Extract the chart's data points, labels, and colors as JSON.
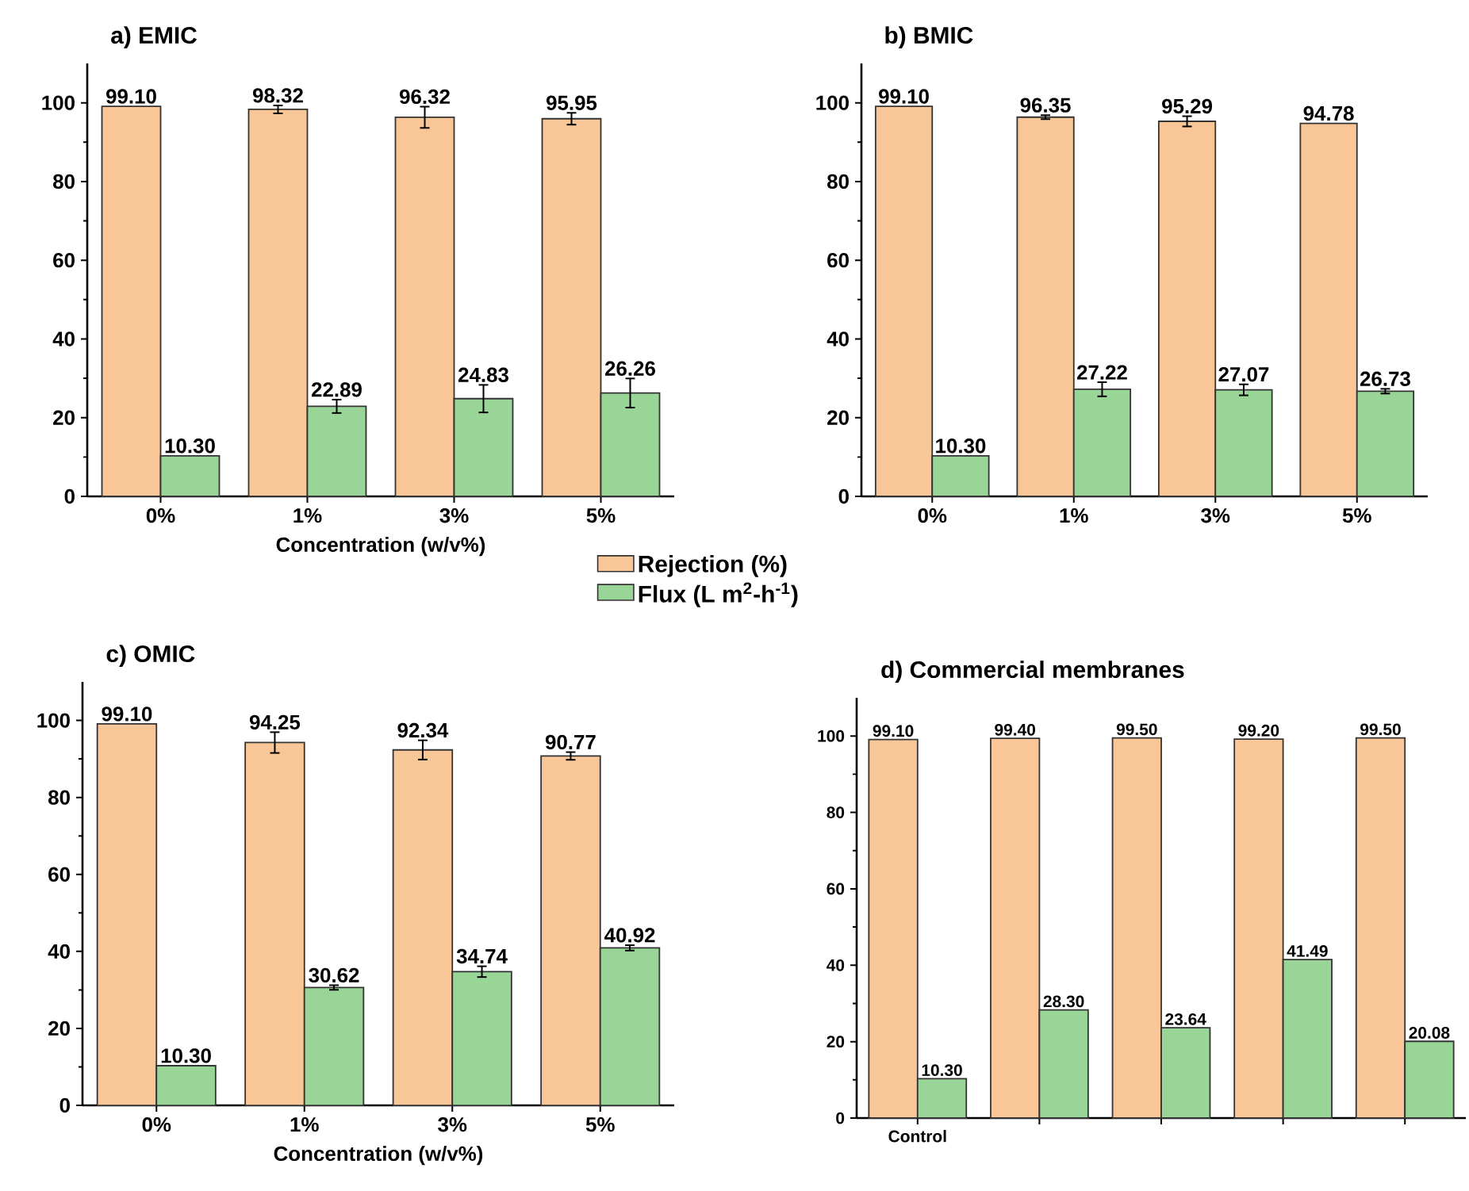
{
  "chart_data": [
    {
      "type": "bar",
      "title": "a) EMIC",
      "xlabel": "Concentration (w/v%)",
      "categories": [
        "0%",
        "1%",
        "3%",
        "5%"
      ],
      "ylim": [
        0,
        110
      ],
      "yticks": [
        0,
        20,
        40,
        60,
        80,
        100
      ],
      "legend": "bottom right",
      "series": [
        {
          "name": "Rejection (%)",
          "color": "#f9c797",
          "values": [
            99.1,
            98.32,
            96.32,
            95.95
          ],
          "errors": [
            null,
            1.0,
            2.7,
            1.5
          ],
          "value_labels": [
            "99.10",
            "98.32",
            "96.32",
            "95.95"
          ]
        },
        {
          "name": "Flux (L m$^{2}$-h$^{-1}$)",
          "color": "#98d596",
          "values": [
            10.3,
            22.89,
            24.83,
            26.26
          ],
          "errors": [
            null,
            1.7,
            3.5,
            3.7
          ],
          "value_labels": [
            "10.30",
            "22.89",
            "24.83",
            "26.26"
          ]
        }
      ]
    },
    {
      "type": "bar",
      "title": "b) BMIC",
      "categories": [
        "0%",
        "1%",
        "3%",
        "5%"
      ],
      "ylim": [
        0,
        110
      ],
      "yticks": [
        0,
        20,
        40,
        60,
        80,
        100
      ],
      "series": [
        {
          "color": "#f9c797",
          "values": [
            99.1,
            96.35,
            95.29,
            94.78
          ],
          "errors": [
            null,
            0.5,
            1.3,
            null
          ],
          "value_labels": [
            "99.10",
            "96.35",
            "95.29",
            "94.78"
          ]
        },
        {
          "color": "#98d596",
          "values": [
            10.3,
            27.22,
            27.07,
            26.73
          ],
          "errors": [
            null,
            1.8,
            1.4,
            0.6
          ],
          "value_labels": [
            "10.30",
            "27.22",
            "27.07",
            "26.73"
          ]
        }
      ]
    },
    {
      "type": "bar",
      "title": "c) OMIC",
      "xlabel": "Concentration (w/v%)",
      "categories": [
        "0%",
        "1%",
        "3%",
        "5%"
      ],
      "ylim": [
        0,
        110
      ],
      "yticks": [
        0,
        20,
        40,
        60,
        80,
        100
      ],
      "series": [
        {
          "color": "#f9c797",
          "values": [
            99.1,
            94.25,
            92.34,
            90.77
          ],
          "errors": [
            null,
            2.7,
            2.5,
            1.0
          ],
          "value_labels": [
            "99.10",
            "94.25",
            "92.34",
            "90.77"
          ]
        },
        {
          "color": "#98d596",
          "values": [
            10.3,
            30.62,
            34.74,
            40.92
          ],
          "errors": [
            null,
            0.6,
            1.4,
            0.7
          ],
          "value_labels": [
            "10.30",
            "30.62",
            "34.74",
            "40.92"
          ]
        }
      ]
    },
    {
      "type": "bar",
      "title": "d) Commercial membranes",
      "categories": [
        "Control",
        null,
        null,
        null,
        null
      ],
      "ylim": [
        0,
        110
      ],
      "yticks": [
        0,
        20,
        40,
        60,
        80,
        100
      ],
      "series": [
        {
          "color": "#f9c797",
          "values": [
            99.1,
            99.4,
            99.5,
            99.2,
            99.5
          ],
          "value_labels": [
            "99.10",
            "99.40",
            "99.50",
            "99.20",
            "99.50"
          ]
        },
        {
          "color": "#98d596",
          "values": [
            10.3,
            28.3,
            23.64,
            41.49,
            20.08
          ],
          "value_labels": [
            "10.30",
            "28.30",
            "23.64",
            "41.49",
            "20.08"
          ]
        }
      ]
    }
  ]
}
